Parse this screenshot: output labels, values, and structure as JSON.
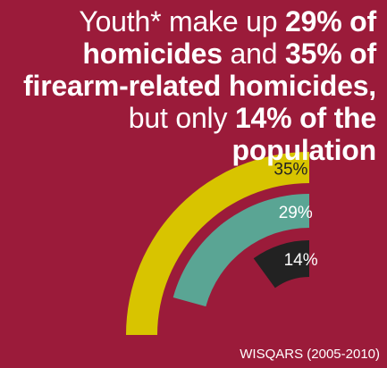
{
  "headline": {
    "line1_a": "Youth* make up ",
    "line1_b": "29% of",
    "line2_a": "homicides",
    "line2_b": " and ",
    "line2_c": "35% of",
    "line3": "firearm-related homicides,",
    "line4_a": "but only ",
    "line4_b": "14% of the",
    "line5": "population"
  },
  "source": "WISQARS (2005-2010)",
  "colors": {
    "background": "#9b1b3a",
    "text": "#ffffff",
    "population": "#222222",
    "homicides": "#5aa594",
    "firearm": "#d8c400"
  },
  "chart_data": {
    "type": "bar",
    "layout": "concentric-arcs",
    "categories": [
      "population",
      "homicides",
      "firearm-related homicides"
    ],
    "values": [
      14,
      29,
      35
    ],
    "labels": [
      "14%",
      "29%",
      "35%"
    ],
    "unit": "%"
  }
}
